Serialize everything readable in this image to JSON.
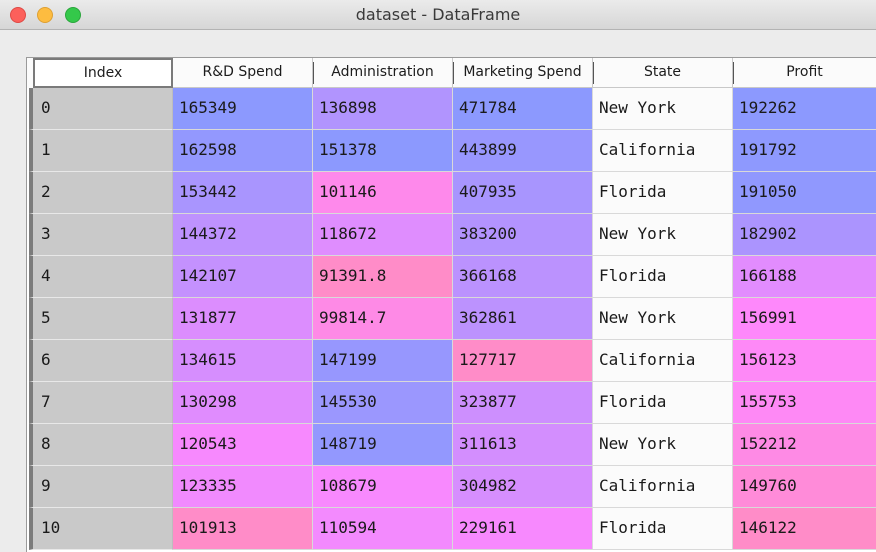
{
  "window": {
    "title": "dataset - DataFrame"
  },
  "columns": [
    "Index",
    "R&D Spend",
    "Administration",
    "Marketing Spend",
    "State",
    "Profit"
  ],
  "rows": [
    {
      "index": "0",
      "rd": "165349",
      "admin": "136898",
      "mkt": "471784",
      "state": "New York",
      "profit": "192262"
    },
    {
      "index": "1",
      "rd": "162598",
      "admin": "151378",
      "mkt": "443899",
      "state": "California",
      "profit": "191792"
    },
    {
      "index": "2",
      "rd": "153442",
      "admin": "101146",
      "mkt": "407935",
      "state": "Florida",
      "profit": "191050"
    },
    {
      "index": "3",
      "rd": "144372",
      "admin": "118672",
      "mkt": "383200",
      "state": "New York",
      "profit": "182902"
    },
    {
      "index": "4",
      "rd": "142107",
      "admin": "91391.8",
      "mkt": "366168",
      "state": "Florida",
      "profit": "166188"
    },
    {
      "index": "5",
      "rd": "131877",
      "admin": "99814.7",
      "mkt": "362861",
      "state": "New York",
      "profit": "156991"
    },
    {
      "index": "6",
      "rd": "134615",
      "admin": "147199",
      "mkt": "127717",
      "state": "California",
      "profit": "156123"
    },
    {
      "index": "7",
      "rd": "130298",
      "admin": "145530",
      "mkt": "323877",
      "state": "Florida",
      "profit": "155753"
    },
    {
      "index": "8",
      "rd": "120543",
      "admin": "148719",
      "mkt": "311613",
      "state": "New York",
      "profit": "152212"
    },
    {
      "index": "9",
      "rd": "123335",
      "admin": "108679",
      "mkt": "304982",
      "state": "California",
      "profit": "149760"
    },
    {
      "index": "10",
      "rd": "101913",
      "admin": "110594",
      "mkt": "229161",
      "state": "Florida",
      "profit": "146122"
    }
  ],
  "colors": {
    "heatmap_low": "#ff8cc8",
    "heatmap_mid": "#fe88fe",
    "heatmap_high": "#8c99fe",
    "index_bg": "#c9c9c9",
    "state_bg": "#fbfbfb"
  }
}
